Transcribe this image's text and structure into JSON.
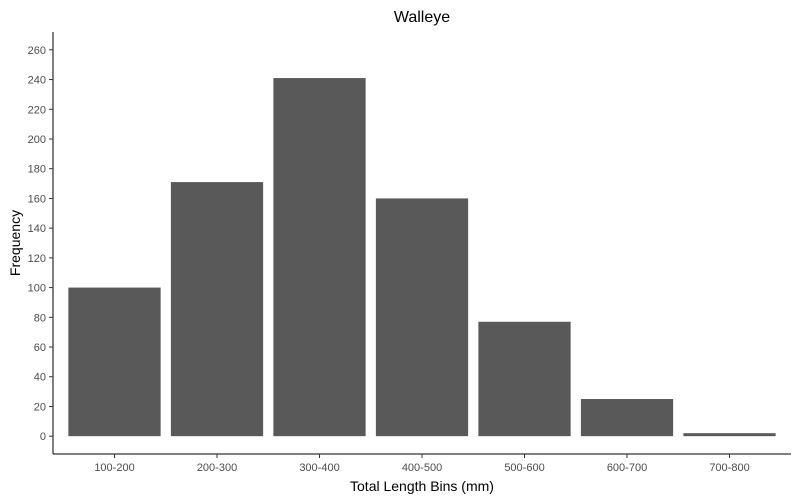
{
  "chart_data": {
    "type": "bar",
    "title": "Walleye",
    "xlabel": "Total Length Bins (mm)",
    "ylabel": "Frequency",
    "categories": [
      "100-200",
      "200-300",
      "300-400",
      "400-500",
      "500-600",
      "600-700",
      "700-800"
    ],
    "values": [
      100,
      171,
      241,
      160,
      77,
      25,
      2
    ],
    "ylim": [
      -12,
      272
    ],
    "yticks": [
      0,
      20,
      40,
      60,
      80,
      100,
      120,
      140,
      160,
      180,
      200,
      220,
      240,
      260
    ],
    "grid": false,
    "legend": "none",
    "bar_color": "#595959"
  }
}
